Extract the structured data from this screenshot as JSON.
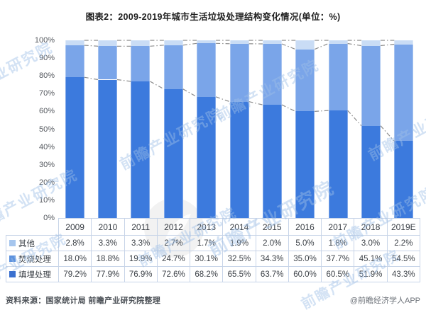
{
  "title": "图表2：2009-2019年城市生活垃圾处理结构变化情况(单位：%)",
  "chart_data": {
    "type": "bar",
    "stacked": true,
    "title": "图表2：2009-2019年城市生活垃圾处理结构变化情况(单位：%)",
    "unit": "%",
    "categories": [
      "2009",
      "2010",
      "2011",
      "2012",
      "2013",
      "2014",
      "2015",
      "2016",
      "2017",
      "2018",
      "2019E"
    ],
    "series": [
      {
        "name": "填埋处理",
        "color": "#3c7add",
        "legend_color": "#3a70cf",
        "values": [
          79.2,
          77.9,
          76.9,
          72.6,
          68.2,
          65.5,
          63.7,
          60.0,
          60.5,
          51.9,
          43.3
        ]
      },
      {
        "name": "焚烧处理",
        "color": "#7aa5e9",
        "legend_color": "#5d92de",
        "values": [
          18.0,
          18.8,
          19.9,
          24.7,
          30.1,
          32.5,
          34.3,
          35.0,
          37.7,
          45.1,
          54.5
        ]
      },
      {
        "name": "其他",
        "color": "#c9dcf5",
        "legend_color": "#a6c6ee",
        "values": [
          2.8,
          3.3,
          3.3,
          2.7,
          1.7,
          1.9,
          2.0,
          5.0,
          1.8,
          3.0,
          2.2
        ]
      }
    ],
    "connector_lines": {
      "color": "#8c8c8c",
      "style": "dash-dot",
      "tracks": [
        "top-of-stack-100%",
        "top-of-incineration-segment",
        "top-of-landfill-segment"
      ]
    },
    "y_ticks": [
      "0%",
      "10%",
      "20%",
      "30%",
      "40%",
      "50%",
      "60%",
      "70%",
      "80%",
      "90%",
      "100%"
    ],
    "ylim": [
      0,
      100
    ],
    "grid": false,
    "legend_position": "table-left-column",
    "value_format": "0.0%"
  },
  "footer": {
    "source": "资料来源：国家统计局 前瞻产业研究院整理",
    "credit": "@前瞻经济学人APP"
  },
  "watermark": {
    "text": "前瞻产业研究院",
    "logo": "qianzhan-circle-logo"
  }
}
